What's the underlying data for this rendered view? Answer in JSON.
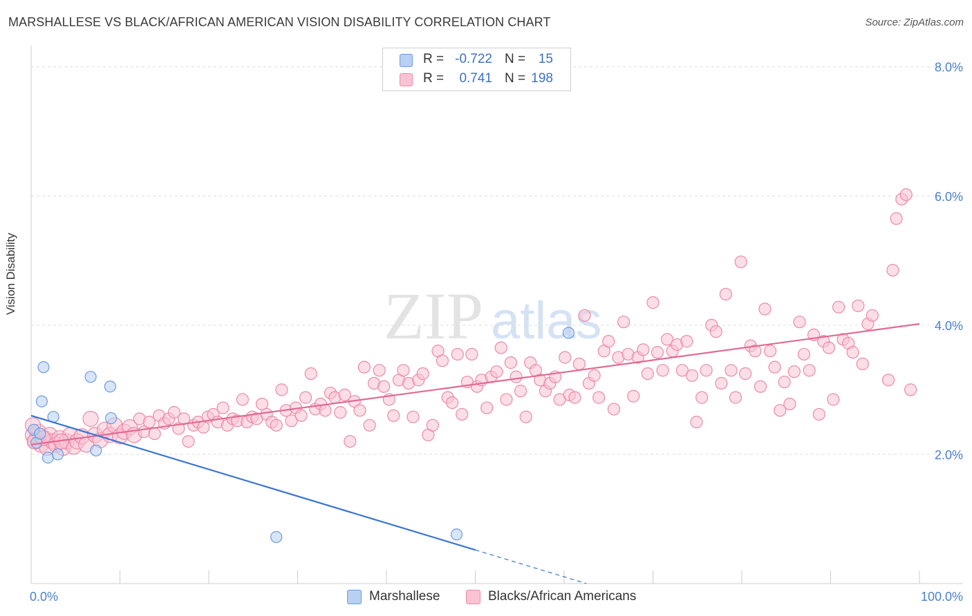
{
  "title": "MARSHALLESE VS BLACK/AFRICAN AMERICAN VISION DISABILITY CORRELATION CHART",
  "source": "Source: ZipAtlas.com",
  "watermark": {
    "zip": "ZIP",
    "atlas": "atlas"
  },
  "colors": {
    "marshallese_fill": "#b8d0f2",
    "marshallese_stroke": "#6a9be0",
    "marshallese_line": "#3874d1",
    "black_fill": "#f9c3d3",
    "black_stroke": "#ea8aa8",
    "black_line": "#e06a94",
    "tick_label": "#4a7fd0"
  },
  "stats": {
    "marshallese": {
      "r_label": "R =",
      "r": "-0.722",
      "n_label": "N =",
      "n": "15"
    },
    "black": {
      "r_label": "R =",
      "r": "0.741",
      "n_label": "N =",
      "n": "198"
    }
  },
  "legend": {
    "marshallese": "Marshallese",
    "black": "Blacks/African Americans"
  },
  "chart_data": {
    "type": "scatter",
    "title": "MARSHALLESE VS BLACK/AFRICAN AMERICAN VISION DISABILITY CORRELATION CHART",
    "xlabel": "",
    "ylabel": "Vision Disability",
    "xlim": [
      0,
      100
    ],
    "ylim": [
      0,
      8.2
    ],
    "x_ticks": [
      "0.0%",
      "100.0%"
    ],
    "y_ticks": [
      {
        "value": 2,
        "label": "2.0%"
      },
      {
        "value": 4,
        "label": "4.0%"
      },
      {
        "value": 6,
        "label": "6.0%"
      },
      {
        "value": 8,
        "label": "8.0%"
      }
    ],
    "grid": "horizontal dashed",
    "legend_position": "bottom-center",
    "series": [
      {
        "name": "Marshallese",
        "trend": {
          "x": [
            0,
            50
          ],
          "y": [
            2.6,
            0.52
          ],
          "dashed_to": [
            62.5,
            0
          ]
        },
        "points": [
          [
            0.3,
            2.38
          ],
          [
            0.6,
            2.18
          ],
          [
            1.0,
            2.32
          ],
          [
            1.2,
            2.82
          ],
          [
            1.4,
            3.35
          ],
          [
            1.9,
            1.95
          ],
          [
            2.5,
            2.58
          ],
          [
            3.0,
            2.0
          ],
          [
            6.7,
            3.2
          ],
          [
            7.3,
            2.06
          ],
          [
            8.9,
            3.05
          ],
          [
            9.0,
            2.56
          ],
          [
            27.6,
            0.72
          ],
          [
            47.9,
            0.76
          ],
          [
            60.5,
            3.88
          ]
        ]
      },
      {
        "name": "Blacks/African Americans",
        "trend": {
          "x": [
            0,
            100
          ],
          "y": [
            2.15,
            4.02
          ]
        },
        "points": [
          [
            0.2,
            2.3
          ],
          [
            0.5,
            2.2
          ],
          [
            0.8,
            2.35
          ],
          [
            1.1,
            2.15
          ],
          [
            1.5,
            2.25
          ],
          [
            1.8,
            2.1
          ],
          [
            2.1,
            2.3
          ],
          [
            2.4,
            2.2
          ],
          [
            2.8,
            2.15
          ],
          [
            3.2,
            2.25
          ],
          [
            3.6,
            2.1
          ],
          [
            4.0,
            2.2
          ],
          [
            4.4,
            2.3
          ],
          [
            4.8,
            2.12
          ],
          [
            5.2,
            2.2
          ],
          [
            5.7,
            2.28
          ],
          [
            6.2,
            2.15
          ],
          [
            6.7,
            2.55
          ],
          [
            7.2,
            2.3
          ],
          [
            7.8,
            2.22
          ],
          [
            8.3,
            2.38
          ],
          [
            8.9,
            2.3
          ],
          [
            9.4,
            2.45
          ],
          [
            10.0,
            2.28
          ],
          [
            10.5,
            2.35
          ],
          [
            11.1,
            2.42
          ],
          [
            11.6,
            2.3
          ],
          [
            12.2,
            2.55
          ],
          [
            12.7,
            2.35
          ],
          [
            13.3,
            2.5
          ],
          [
            13.9,
            2.32
          ],
          [
            14.4,
            2.6
          ],
          [
            15.0,
            2.48
          ],
          [
            15.5,
            2.55
          ],
          [
            16.1,
            2.65
          ],
          [
            16.6,
            2.4
          ],
          [
            17.2,
            2.55
          ],
          [
            17.7,
            2.2
          ],
          [
            18.3,
            2.45
          ],
          [
            18.8,
            2.5
          ],
          [
            19.4,
            2.42
          ],
          [
            19.9,
            2.58
          ],
          [
            20.5,
            2.62
          ],
          [
            21.0,
            2.5
          ],
          [
            21.6,
            2.72
          ],
          [
            22.1,
            2.45
          ],
          [
            22.7,
            2.55
          ],
          [
            23.2,
            2.52
          ],
          [
            23.8,
            2.85
          ],
          [
            24.3,
            2.5
          ],
          [
            24.9,
            2.58
          ],
          [
            25.4,
            2.55
          ],
          [
            26.0,
            2.78
          ],
          [
            26.5,
            2.62
          ],
          [
            27.1,
            2.5
          ],
          [
            27.6,
            2.45
          ],
          [
            28.2,
            3.0
          ],
          [
            28.7,
            2.68
          ],
          [
            29.3,
            2.52
          ],
          [
            29.8,
            2.72
          ],
          [
            30.4,
            2.6
          ],
          [
            30.9,
            2.88
          ],
          [
            31.5,
            3.25
          ],
          [
            32.0,
            2.7
          ],
          [
            32.6,
            2.78
          ],
          [
            33.1,
            2.68
          ],
          [
            33.7,
            2.95
          ],
          [
            34.2,
            2.88
          ],
          [
            34.8,
            2.65
          ],
          [
            35.3,
            2.92
          ],
          [
            35.9,
            2.2
          ],
          [
            36.4,
            2.82
          ],
          [
            37.0,
            2.68
          ],
          [
            37.5,
            3.35
          ],
          [
            38.1,
            2.45
          ],
          [
            38.6,
            3.1
          ],
          [
            39.2,
            3.3
          ],
          [
            39.7,
            3.05
          ],
          [
            40.3,
            2.85
          ],
          [
            40.8,
            2.6
          ],
          [
            41.4,
            3.15
          ],
          [
            41.9,
            3.3
          ],
          [
            42.5,
            3.1
          ],
          [
            43.0,
            2.58
          ],
          [
            43.6,
            3.15
          ],
          [
            44.1,
            3.25
          ],
          [
            44.7,
            2.3
          ],
          [
            45.2,
            2.45
          ],
          [
            45.8,
            3.6
          ],
          [
            46.3,
            3.45
          ],
          [
            46.9,
            2.88
          ],
          [
            47.4,
            2.8
          ],
          [
            48.0,
            3.55
          ],
          [
            48.5,
            2.62
          ],
          [
            49.1,
            3.12
          ],
          [
            49.6,
            3.55
          ],
          [
            50.2,
            3.05
          ],
          [
            50.7,
            3.15
          ],
          [
            51.3,
            2.72
          ],
          [
            51.8,
            3.2
          ],
          [
            52.4,
            3.28
          ],
          [
            52.9,
            3.65
          ],
          [
            53.5,
            2.85
          ],
          [
            54.0,
            3.42
          ],
          [
            54.6,
            3.2
          ],
          [
            55.1,
            2.98
          ],
          [
            55.7,
            2.58
          ],
          [
            56.2,
            3.42
          ],
          [
            56.8,
            3.3
          ],
          [
            57.3,
            3.15
          ],
          [
            57.9,
            2.98
          ],
          [
            58.4,
            3.1
          ],
          [
            59.0,
            3.2
          ],
          [
            59.5,
            2.85
          ],
          [
            60.1,
            3.5
          ],
          [
            60.6,
            2.92
          ],
          [
            61.2,
            2.88
          ],
          [
            61.7,
            3.4
          ],
          [
            62.3,
            4.15
          ],
          [
            62.8,
            3.1
          ],
          [
            63.4,
            3.22
          ],
          [
            63.9,
            2.88
          ],
          [
            64.5,
            3.6
          ],
          [
            65.0,
            3.75
          ],
          [
            65.6,
            2.7
          ],
          [
            66.1,
            3.5
          ],
          [
            66.7,
            4.05
          ],
          [
            67.2,
            3.55
          ],
          [
            67.8,
            2.9
          ],
          [
            68.3,
            3.5
          ],
          [
            68.9,
            3.62
          ],
          [
            69.4,
            3.25
          ],
          [
            70.0,
            4.35
          ],
          [
            70.5,
            3.58
          ],
          [
            71.1,
            3.3
          ],
          [
            71.6,
            3.78
          ],
          [
            72.2,
            3.6
          ],
          [
            72.7,
            3.7
          ],
          [
            73.3,
            3.3
          ],
          [
            73.8,
            3.75
          ],
          [
            74.4,
            3.22
          ],
          [
            74.9,
            2.5
          ],
          [
            75.5,
            2.88
          ],
          [
            76.0,
            3.3
          ],
          [
            76.6,
            4.0
          ],
          [
            77.1,
            3.9
          ],
          [
            77.7,
            3.1
          ],
          [
            78.2,
            4.48
          ],
          [
            78.8,
            3.3
          ],
          [
            79.3,
            2.88
          ],
          [
            79.9,
            4.98
          ],
          [
            80.4,
            3.25
          ],
          [
            81.0,
            3.68
          ],
          [
            81.5,
            3.6
          ],
          [
            82.1,
            3.05
          ],
          [
            82.6,
            4.25
          ],
          [
            83.2,
            3.6
          ],
          [
            83.7,
            3.35
          ],
          [
            84.3,
            2.68
          ],
          [
            84.8,
            3.12
          ],
          [
            85.4,
            2.78
          ],
          [
            85.9,
            3.28
          ],
          [
            86.5,
            4.05
          ],
          [
            87.0,
            3.55
          ],
          [
            87.6,
            3.3
          ],
          [
            88.1,
            3.85
          ],
          [
            88.7,
            2.62
          ],
          [
            89.2,
            3.75
          ],
          [
            89.8,
            3.65
          ],
          [
            90.3,
            2.85
          ],
          [
            90.9,
            4.28
          ],
          [
            91.4,
            3.78
          ],
          [
            92.0,
            3.72
          ],
          [
            92.5,
            3.58
          ],
          [
            93.1,
            4.3
          ],
          [
            93.6,
            3.4
          ],
          [
            94.2,
            4.02
          ],
          [
            94.7,
            4.15
          ],
          [
            96.5,
            3.15
          ],
          [
            97.0,
            4.85
          ],
          [
            97.4,
            5.65
          ],
          [
            98.0,
            5.95
          ],
          [
            98.5,
            6.02
          ],
          [
            99.0,
            3.0
          ],
          [
            0.2,
            2.45
          ],
          [
            0.4,
            2.2
          ],
          [
            1.3,
            2.25
          ],
          [
            3.4,
            2.2
          ]
        ]
      }
    ]
  }
}
